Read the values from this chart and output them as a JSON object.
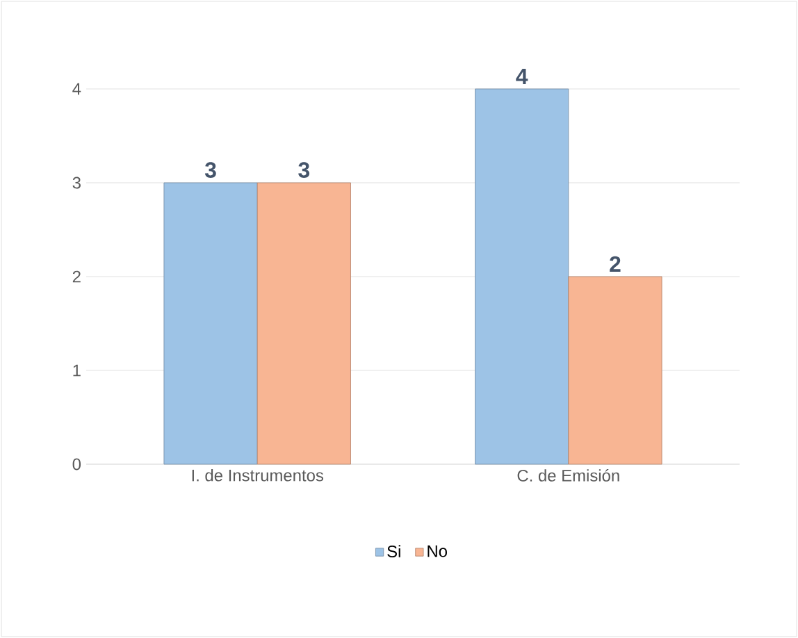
{
  "chart_data": {
    "type": "bar",
    "categories": [
      "I. de Instrumentos",
      "C. de Emisión"
    ],
    "series": [
      {
        "name": "Si",
        "color": "#9dc3e6",
        "values": [
          3,
          4
        ]
      },
      {
        "name": "No",
        "color": "#f8b593",
        "values": [
          3,
          2
        ]
      }
    ],
    "ylim": [
      0,
      4
    ],
    "yticks": [
      0,
      1,
      2,
      3,
      4
    ],
    "grid": "y",
    "legend": "bottom",
    "data_labels": true
  }
}
